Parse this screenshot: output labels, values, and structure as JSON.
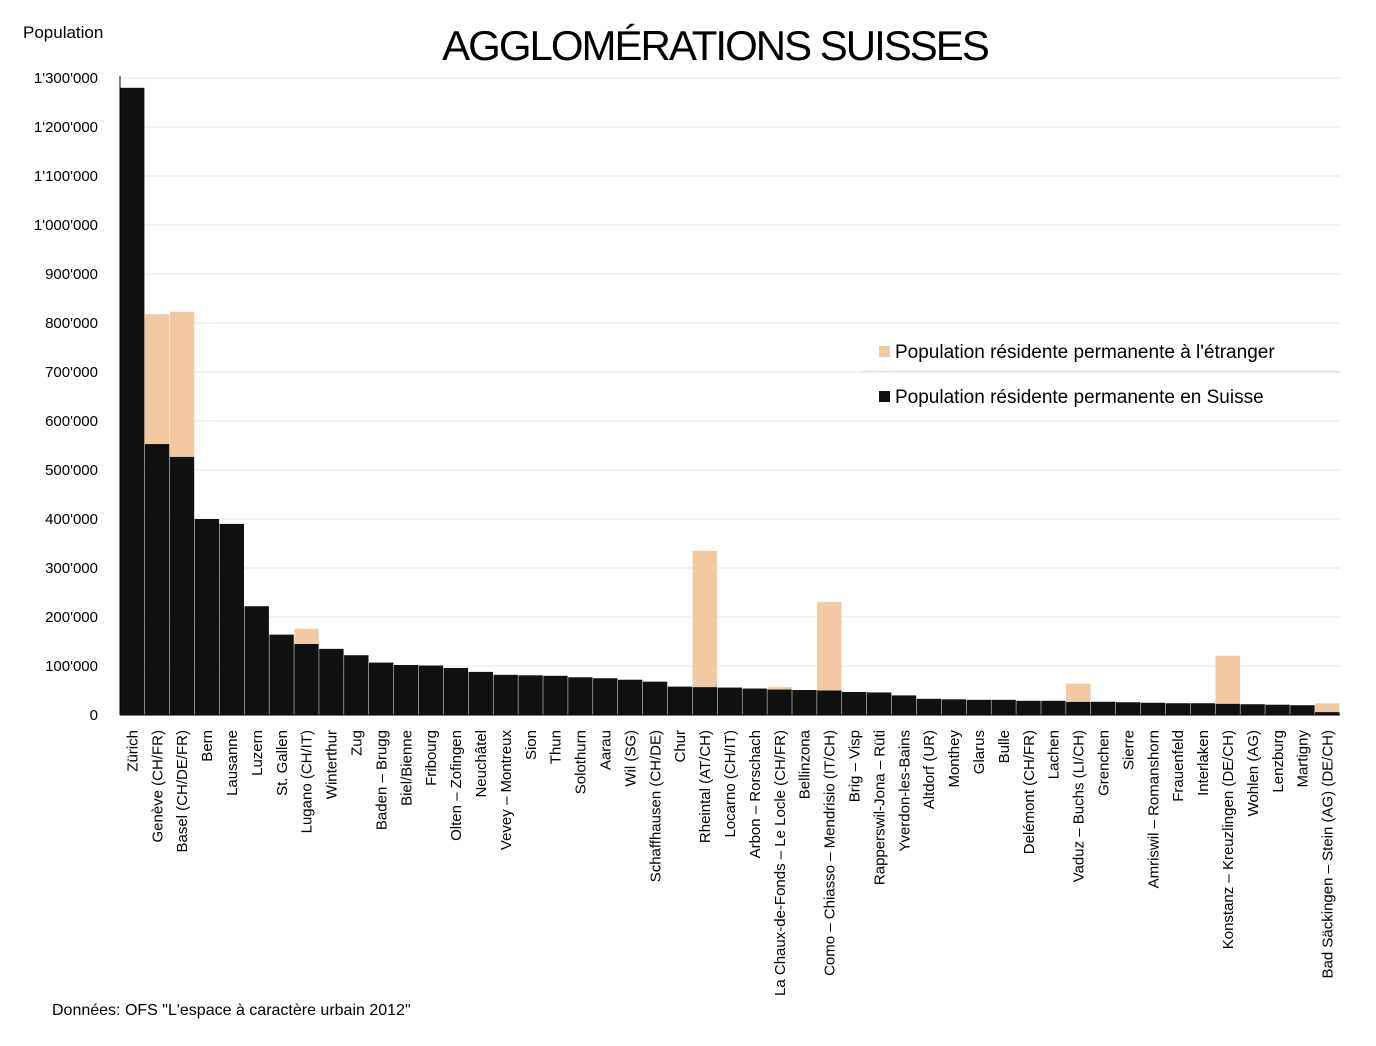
{
  "chart_data": {
    "type": "bar",
    "stacked": true,
    "title": "AGGLOMÉRATIONS SUISSES",
    "ylabel": "Population",
    "xlabel": "",
    "ylim": [
      0,
      1300000
    ],
    "yticks": [
      0,
      100000,
      200000,
      300000,
      400000,
      500000,
      600000,
      700000,
      800000,
      900000,
      1000000,
      1100000,
      1200000,
      1300000
    ],
    "ytick_labels": [
      "0",
      "100'000",
      "200'000",
      "300'000",
      "400'000",
      "500'000",
      "600'000",
      "700'000",
      "800'000",
      "900'000",
      "1'000'000",
      "1'100'000",
      "1'200'000",
      "1'300'000"
    ],
    "grid": true,
    "legend_position": "right",
    "categories": [
      "Zürich",
      "Genève (CH/FR)",
      "Basel (CH/DE/FR)",
      "Bern",
      "Lausanne",
      "Luzern",
      "St. Gallen",
      "Lugano (CH/IT)",
      "Winterthur",
      "Zug",
      "Baden – Brugg",
      "Biel/Bienne",
      "Fribourg",
      "Olten – Zofingen",
      "Neuchâtel",
      "Vevey – Montreux",
      "Sion",
      "Thun",
      "Solothurn",
      "Aarau",
      "Wil (SG)",
      "Schaffhausen (CH/DE)",
      "Chur",
      "Rheintal (AT/CH)",
      "Locarno (CH/IT)",
      "Arbon – Rorschach",
      "La Chaux-de-Fonds – Le Locle (CH/FR)",
      "Bellinzona",
      "Como – Chiasso – Mendrisio (IT/CH)",
      "Brig – Visp",
      "Rapperswil-Jona – Rüti",
      "Yverdon-les-Bains",
      "Altdorf (UR)",
      "Monthey",
      "Glarus",
      "Bulle",
      "Delémont (CH/FR)",
      "Lachen",
      "Vaduz – Buchs (LI/CH)",
      "Grenchen",
      "Sierre",
      "Amriswil – Romanshorn",
      "Frauenfeld",
      "Interlaken",
      "Konstanz – Kreuzlingen (DE/CH)",
      "Wohlen (AG)",
      "Lenzburg",
      "Martigny",
      "Bad Säckingen – Stein (AG) (DE/CH)"
    ],
    "series": [
      {
        "name": "Population résidente permanente en Suisse",
        "color": "#111111",
        "values": [
          1280000,
          553000,
          527000,
          400000,
          390000,
          222000,
          164000,
          145000,
          135000,
          122000,
          107000,
          102000,
          101000,
          96000,
          88000,
          82000,
          81000,
          80000,
          77000,
          75000,
          72000,
          68000,
          58000,
          57000,
          56000,
          54000,
          52000,
          51000,
          50000,
          47000,
          46000,
          40000,
          33000,
          32000,
          31000,
          31000,
          29000,
          29000,
          27000,
          27000,
          26000,
          25000,
          24000,
          24000,
          23000,
          22000,
          21000,
          20000,
          6000
        ]
      },
      {
        "name": "Population résidente permanente à l'étranger",
        "color": "#f2c9a0",
        "values": [
          0,
          265000,
          296000,
          0,
          0,
          0,
          0,
          31000,
          0,
          0,
          0,
          0,
          0,
          0,
          0,
          0,
          0,
          0,
          0,
          0,
          0,
          0,
          0,
          278000,
          0,
          0,
          5000,
          0,
          181000,
          0,
          0,
          0,
          0,
          0,
          0,
          0,
          0,
          0,
          37000,
          0,
          0,
          0,
          0,
          0,
          98000,
          0,
          0,
          0,
          18000
        ]
      }
    ]
  },
  "legend": {
    "items": [
      {
        "label": "Population résidente permanente à l'étranger",
        "color": "#f2c9a0"
      },
      {
        "label": "Population résidente permanente en Suisse",
        "color": "#111111"
      }
    ]
  },
  "footer": {
    "source": "Données: OFS \"L'espace à caractère urbain 2012\""
  }
}
